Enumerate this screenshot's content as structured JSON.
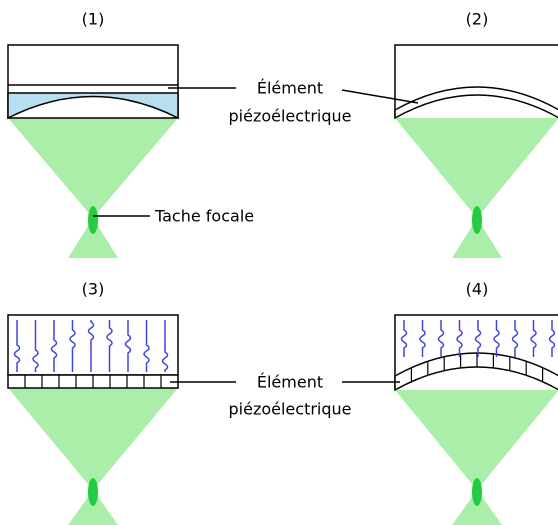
{
  "panels": [
    {
      "label": "(1)"
    },
    {
      "label": "(2)"
    },
    {
      "label": "(3)"
    },
    {
      "label": "(4)"
    }
  ],
  "element_labels": [
    {
      "lines": [
        "Élément",
        "piézoélectrique"
      ]
    },
    {
      "lines": [
        "Élément",
        "piézoélectrique"
      ]
    }
  ],
  "focal_label": "Tache focale"
}
